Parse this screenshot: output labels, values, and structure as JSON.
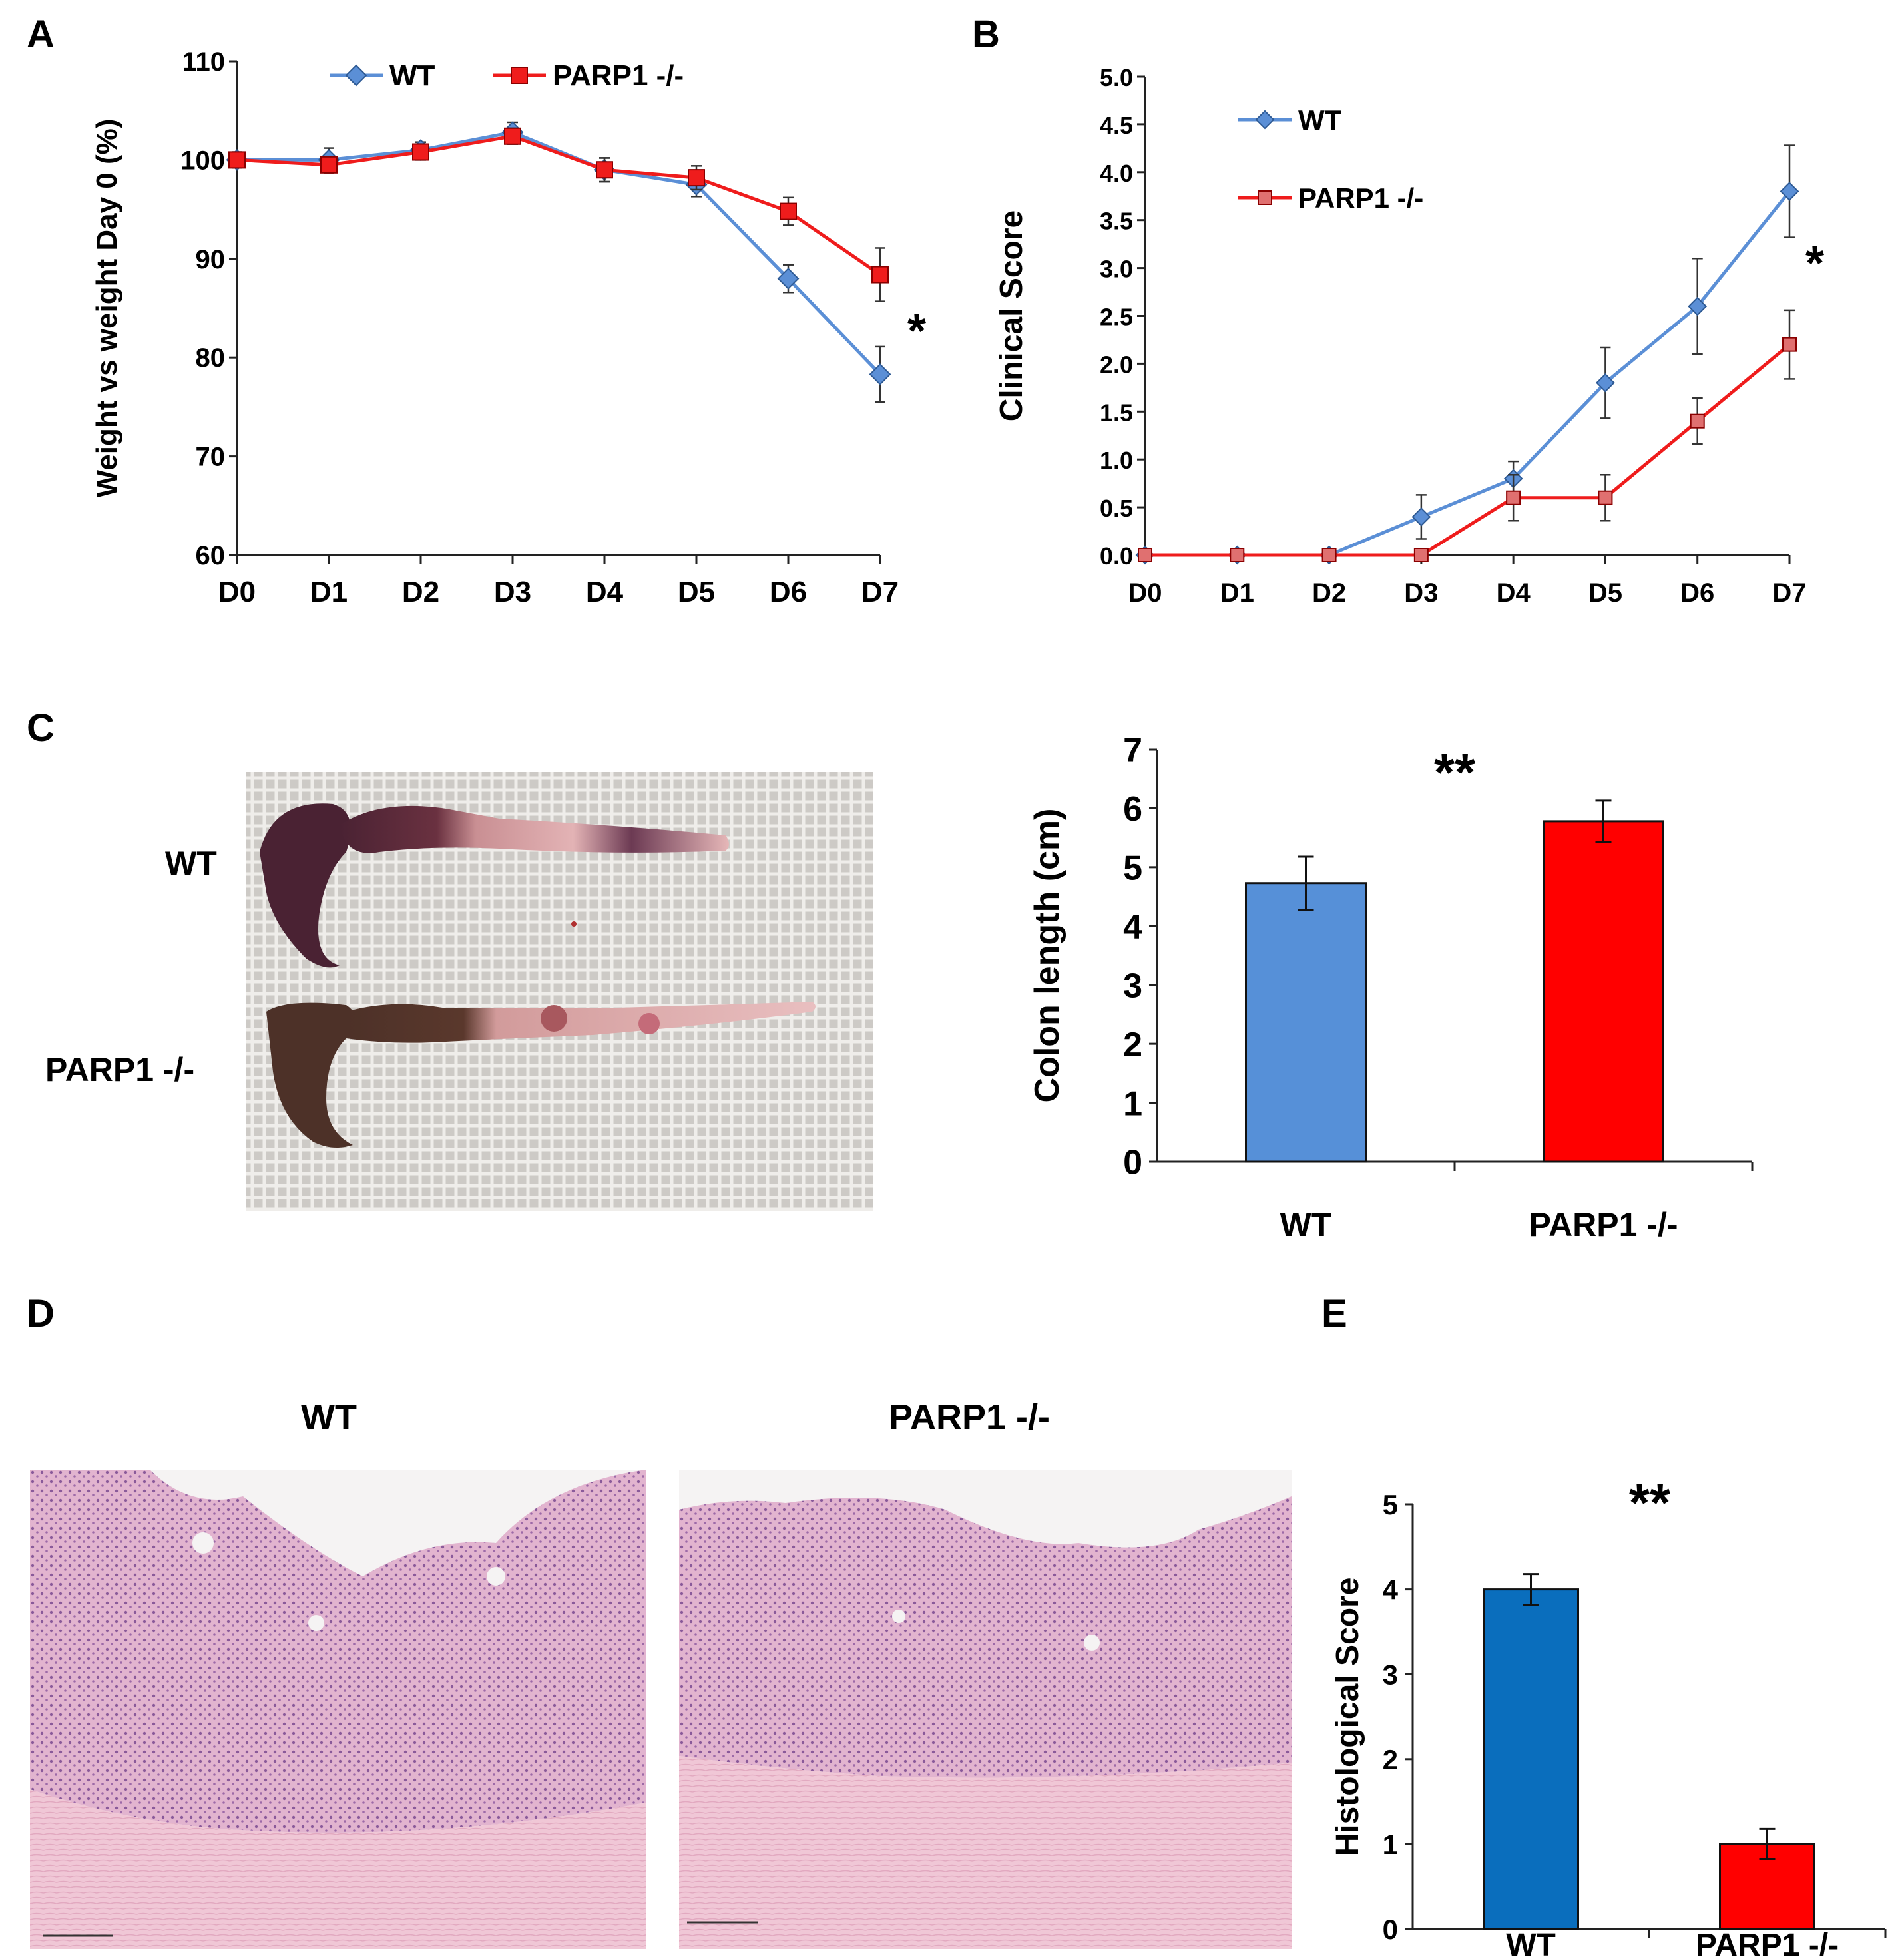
{
  "panels": {
    "A": "A",
    "B": "B",
    "C": "C",
    "D": "D",
    "E": "E"
  },
  "colors": {
    "wt_line": "#5b8fd6",
    "ko_line": "#ef1c1c",
    "wt_bar_c": "#5690d8",
    "ko_bar": "#ff0000",
    "wt_bar_e": "#0a6ebd",
    "ko_marker_b": "#e07070"
  },
  "photo_c": {
    "wt_label": "WT",
    "ko_label": "PARP1 -/-"
  },
  "histology_d": {
    "wt_title": "WT",
    "ko_title": "PARP1 -/-"
  },
  "chart_data": [
    {
      "id": "A",
      "type": "line",
      "categories": [
        "D0",
        "D1",
        "D2",
        "D3",
        "D4",
        "D5",
        "D6",
        "D7"
      ],
      "series": [
        {
          "name": "WT",
          "values": [
            100,
            100,
            101,
            102.8,
            99,
            97.5,
            88,
            78.3
          ],
          "errors": [
            0.8,
            1.2,
            0.8,
            1.0,
            1.2,
            1.2,
            1.4,
            2.8
          ],
          "marker": "diamond"
        },
        {
          "name": "PARP1 -/-",
          "values": [
            100,
            99.5,
            100.8,
            102.4,
            99,
            98.2,
            94.8,
            88.4
          ],
          "errors": [
            0.6,
            0.8,
            0.8,
            0.8,
            1.2,
            1.2,
            1.4,
            2.7
          ],
          "marker": "square"
        }
      ],
      "ylabel": "Weight vs weight Day 0 (%)",
      "ylim": [
        60,
        110
      ],
      "yticks": [
        60,
        70,
        80,
        90,
        100,
        110
      ],
      "annotation": "*",
      "legend": "top"
    },
    {
      "id": "B",
      "type": "line",
      "categories": [
        "D0",
        "D1",
        "D2",
        "D3",
        "D4",
        "D5",
        "D6",
        "D7"
      ],
      "series": [
        {
          "name": "WT",
          "values": [
            0,
            0,
            0,
            0.4,
            0.8,
            1.8,
            2.6,
            3.8
          ],
          "errors": [
            0,
            0,
            0,
            0.23,
            0.18,
            0.37,
            0.5,
            0.48
          ],
          "marker": "diamond"
        },
        {
          "name": "PARP1 -/-",
          "values": [
            0,
            0,
            0,
            0,
            0.6,
            0.6,
            1.4,
            2.2
          ],
          "errors": [
            0,
            0,
            0,
            0,
            0.24,
            0.24,
            0.24,
            0.36
          ],
          "marker": "square"
        }
      ],
      "ylabel": "Clinical Score",
      "ylim": [
        0,
        5
      ],
      "yticks": [
        "0.0",
        "0.5",
        "1.0",
        "1.5",
        "2.0",
        "2.5",
        "3.0",
        "3.5",
        "4.0",
        "4.5",
        "5.0"
      ],
      "annotation": "*",
      "legend": "top-left"
    },
    {
      "id": "C",
      "type": "bar",
      "categories": [
        "WT",
        "PARP1 -/-"
      ],
      "values": [
        4.73,
        5.78
      ],
      "errors": [
        0.45,
        0.35
      ],
      "ylabel": "Colon length (cm)",
      "ylim": [
        0,
        7
      ],
      "yticks": [
        "0",
        "1",
        "2",
        "3",
        "4",
        "5",
        "6",
        "7"
      ],
      "annotation": "**"
    },
    {
      "id": "E",
      "type": "bar",
      "categories": [
        "WT",
        "PARP1 -/-"
      ],
      "values": [
        4.0,
        1.0
      ],
      "errors": [
        0.18,
        0.18
      ],
      "ylabel": "Histological Score",
      "ylim": [
        0,
        5
      ],
      "yticks": [
        "0",
        "1",
        "2",
        "3",
        "4",
        "5"
      ],
      "annotation": "**"
    }
  ]
}
